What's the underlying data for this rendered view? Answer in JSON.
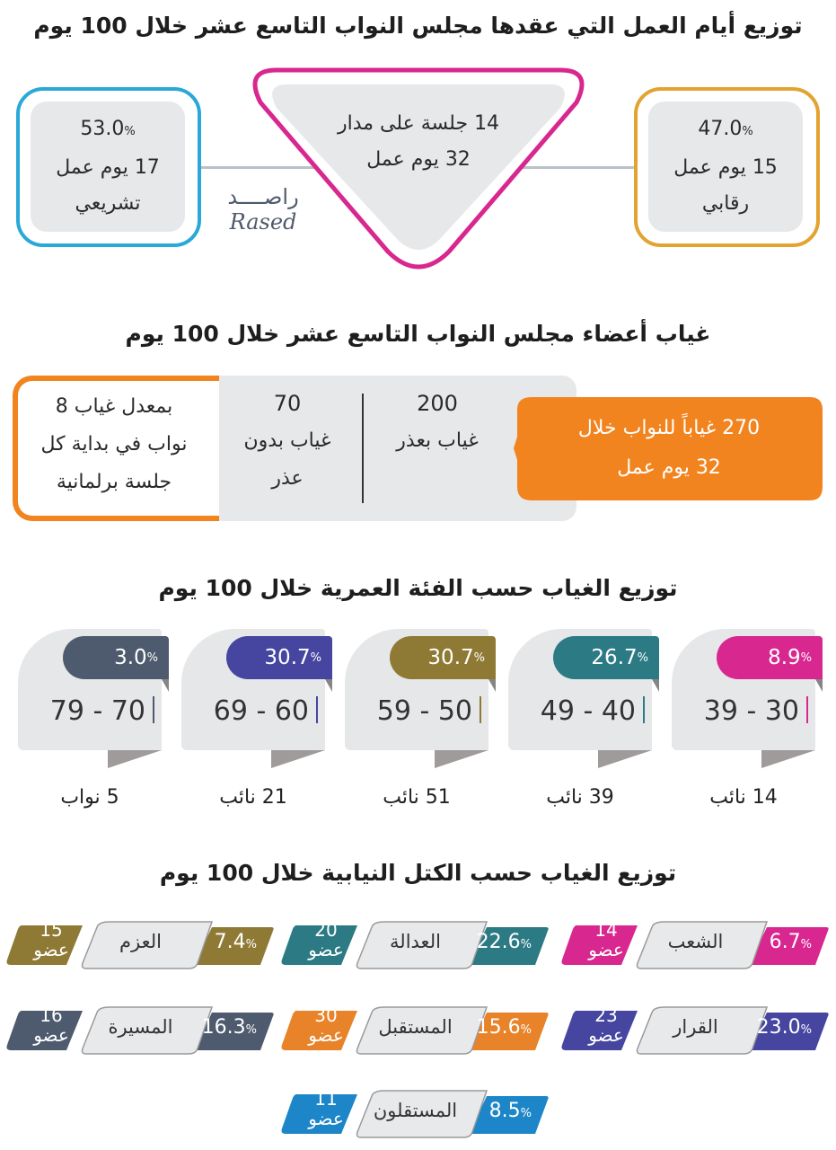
{
  "work_days": {
    "title": "توزيع أيام العمل التي عقدها مجلس النواب التاسع عشر خلال 100 يوم",
    "center": {
      "line1": "14 جلسة على مدار",
      "line2": "32 يوم عمل",
      "color": "#d8278f"
    },
    "legislative": {
      "percent": "53.0",
      "pct_sign": "%",
      "days": "17 يوم عمل",
      "label": "تشريعي",
      "color": "#2aa8d8"
    },
    "oversight": {
      "percent": "47.0",
      "pct_sign": "%",
      "days": "15 يوم عمل",
      "label": "رقابي",
      "color": "#e2a330"
    },
    "logo": {
      "arabic": "راصــــد",
      "latin": "Rased"
    }
  },
  "absence": {
    "title": "غياب أعضاء مجلس النواب التاسع عشر خلال 100 يوم",
    "total": {
      "line1": "270 غياباً للنواب خلال",
      "line2": "32 يوم عمل",
      "color": "#f2841f"
    },
    "with_excuse": {
      "value": "200",
      "label": "غياب بعذر"
    },
    "without_excuse": {
      "value": "70",
      "label1": "غياب بدون",
      "label2": "عذر"
    },
    "average": {
      "line1": "بمعدل غياب 8",
      "line2": "نواب في بداية كل",
      "line3": "جلسة برلمانية"
    }
  },
  "age": {
    "title": "توزيع الغياب حسب الفئة العمرية خلال 100 يوم",
    "groups": [
      {
        "range": "39 - 30",
        "percent": "8.9",
        "pct_sign": "%",
        "members": "14 نائب",
        "color": "#d8278f"
      },
      {
        "range": "49 - 40",
        "percent": "26.7",
        "pct_sign": "%",
        "members": "39 نائب",
        "color": "#2b7a84"
      },
      {
        "range": "59 - 50",
        "percent": "30.7",
        "pct_sign": "%",
        "members": "51 نائب",
        "color": "#8f7a35"
      },
      {
        "range": "69 - 60",
        "percent": "30.7",
        "pct_sign": "%",
        "members": "21 نائب",
        "color": "#4646a0"
      },
      {
        "range": "79 - 70",
        "percent": "3.0",
        "pct_sign": "%",
        "members": "5 نواب",
        "color": "#4e5a6e"
      }
    ]
  },
  "blocs": {
    "title": "توزيع الغياب حسب الكتل النيابية خلال 100 يوم",
    "items": [
      {
        "name": "الشعب",
        "percent": "6.7",
        "pct_sign": "%",
        "count": "14",
        "unit": "عضو",
        "color": "#d8278f"
      },
      {
        "name": "العدالة",
        "percent": "22.6",
        "pct_sign": "%",
        "count": "20",
        "unit": "عضو",
        "color": "#2b7a84"
      },
      {
        "name": "العزم",
        "percent": "7.4",
        "pct_sign": "%",
        "count": "15",
        "unit": "عضو",
        "color": "#8f7a35"
      },
      {
        "name": "القرار",
        "percent": "23.0",
        "pct_sign": "%",
        "count": "23",
        "unit": "عضو",
        "color": "#4646a0"
      },
      {
        "name": "المستقبل",
        "percent": "15.6",
        "pct_sign": "%",
        "count": "30",
        "unit": "عضو",
        "color": "#e8832a"
      },
      {
        "name": "المسيرة",
        "percent": "16.3",
        "pct_sign": "%",
        "count": "16",
        "unit": "عضو",
        "color": "#4e5a6e"
      },
      {
        "name": "المستقلون",
        "percent": "8.5",
        "pct_sign": "%",
        "count": "11",
        "unit": "عضو",
        "color": "#1d86c8"
      }
    ]
  }
}
